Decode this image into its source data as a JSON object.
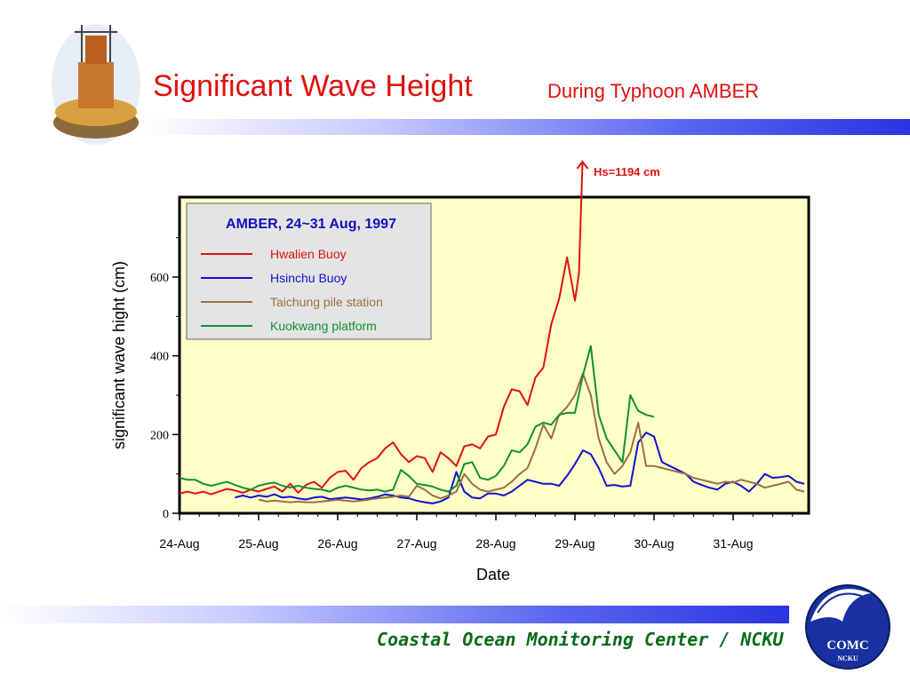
{
  "title": "Significant Wave Height",
  "subtitle": "During Typhoon AMBER",
  "footer": "Coastal Ocean Monitoring Center / NCKU",
  "logo": {
    "name": "COMC",
    "sub": "NCKU"
  },
  "colors": {
    "title": "#e01010",
    "plot_bg": "#ffffc8",
    "legend_bg": "#e4e4e4",
    "footer": "#0a6b1a",
    "bar": "#2a34e0"
  },
  "chart_data": {
    "type": "line",
    "title": "",
    "xlabel": "Date",
    "ylabel": "significant wave hight (cm)",
    "x_ticks": [
      "24-Aug",
      "25-Aug",
      "26-Aug",
      "27-Aug",
      "28-Aug",
      "29-Aug",
      "30-Aug",
      "31-Aug"
    ],
    "y_ticks": [
      "0",
      "200",
      "400",
      "600"
    ],
    "xlim": [
      0,
      7.9
    ],
    "ylim": [
      0,
      800
    ],
    "grid": false,
    "legend": {
      "title": "AMBER, 24~31 Aug, 1997",
      "position": "top-left"
    },
    "annotation": "Hs=1194 cm",
    "series": [
      {
        "name": "Hwalien Buoy",
        "color": "#e01010",
        "x": [
          0,
          0.1,
          0.2,
          0.3,
          0.4,
          0.5,
          0.6,
          0.7,
          0.8,
          0.9,
          1.0,
          1.1,
          1.2,
          1.3,
          1.4,
          1.5,
          1.6,
          1.7,
          1.8,
          1.9,
          2.0,
          2.1,
          2.2,
          2.3,
          2.4,
          2.5,
          2.6,
          2.7,
          2.8,
          2.9,
          3.0,
          3.1,
          3.2,
          3.3,
          3.4,
          3.5,
          3.6,
          3.7,
          3.8,
          3.9,
          4.0,
          4.1,
          4.2,
          4.3,
          4.4,
          4.5,
          4.6,
          4.7,
          4.8,
          4.9,
          5.0,
          5.05
        ],
        "y": [
          50,
          55,
          50,
          55,
          48,
          55,
          62,
          58,
          52,
          60,
          55,
          62,
          68,
          55,
          75,
          52,
          72,
          80,
          65,
          90,
          105,
          108,
          85,
          115,
          130,
          140,
          165,
          180,
          150,
          130,
          145,
          140,
          105,
          155,
          140,
          120,
          170,
          175,
          165,
          195,
          200,
          270,
          315,
          310,
          275,
          345,
          370,
          480,
          545,
          650,
          540,
          610
        ],
        "y_final": 1194
      },
      {
        "name": "Hsinchu Buoy",
        "color": "#1010d0",
        "x": [
          0.7,
          0.8,
          0.9,
          1.0,
          1.1,
          1.2,
          1.3,
          1.4,
          1.5,
          1.6,
          1.7,
          1.8,
          1.9,
          2.0,
          2.1,
          2.2,
          2.3,
          2.4,
          2.5,
          2.6,
          2.7,
          2.8,
          2.9,
          3.0,
          3.1,
          3.2,
          3.3,
          3.4,
          3.5,
          3.6,
          3.7,
          3.8,
          3.9,
          4.0,
          4.1,
          4.2,
          4.3,
          4.4,
          4.5,
          4.6,
          4.7,
          4.8,
          4.9,
          5.0,
          5.1,
          5.2,
          5.3,
          5.4,
          5.5,
          5.6,
          5.7,
          5.8,
          5.9,
          6.0,
          6.1,
          6.2,
          6.3,
          6.4,
          6.5,
          6.6,
          6.7,
          6.8,
          6.9,
          7.0,
          7.1,
          7.2,
          7.3,
          7.4,
          7.5,
          7.6,
          7.7,
          7.8,
          7.9
        ],
        "y": [
          40,
          45,
          40,
          45,
          42,
          48,
          40,
          42,
          38,
          35,
          40,
          42,
          36,
          38,
          40,
          38,
          35,
          38,
          42,
          48,
          45,
          40,
          38,
          32,
          28,
          25,
          30,
          40,
          105,
          55,
          40,
          38,
          50,
          50,
          45,
          55,
          70,
          85,
          80,
          75,
          75,
          70,
          95,
          125,
          160,
          150,
          115,
          70,
          72,
          68,
          70,
          180,
          205,
          195,
          130,
          120,
          110,
          100,
          80,
          72,
          65,
          60,
          75,
          80,
          70,
          55,
          75,
          100,
          90,
          92,
          95,
          80,
          75
        ]
      },
      {
        "name": "Taichung pile station",
        "color": "#9a7040",
        "x": [
          1.0,
          1.1,
          1.2,
          1.3,
          1.4,
          1.5,
          1.6,
          1.7,
          1.8,
          1.9,
          2.0,
          2.1,
          2.2,
          2.3,
          2.4,
          2.5,
          2.6,
          2.7,
          2.8,
          2.9,
          3.0,
          3.1,
          3.2,
          3.3,
          3.4,
          3.5,
          3.6,
          3.7,
          3.8,
          3.9,
          4.0,
          4.1,
          4.2,
          4.3,
          4.4,
          4.5,
          4.6,
          4.7,
          4.8,
          4.9,
          5.0,
          5.1,
          5.2,
          5.3,
          5.4,
          5.5,
          5.6,
          5.7,
          5.8,
          5.9,
          6.0,
          6.1,
          6.2,
          6.3,
          6.4,
          6.5,
          6.6,
          6.7,
          6.8,
          6.9,
          7.0,
          7.1,
          7.2,
          7.3,
          7.4,
          7.5,
          7.6,
          7.7,
          7.8,
          7.9
        ],
        "y": [
          35,
          30,
          32,
          30,
          28,
          30,
          28,
          28,
          30,
          32,
          34,
          32,
          30,
          32,
          35,
          38,
          40,
          42,
          45,
          42,
          70,
          60,
          45,
          38,
          45,
          55,
          100,
          75,
          60,
          55,
          60,
          65,
          80,
          100,
          115,
          165,
          225,
          190,
          250,
          270,
          300,
          355,
          300,
          190,
          130,
          100,
          120,
          155,
          230,
          120,
          120,
          115,
          110,
          105,
          100,
          90,
          85,
          80,
          75,
          80,
          78,
          85,
          80,
          75,
          65,
          70,
          75,
          80,
          60,
          55
        ]
      },
      {
        "name": "Kuokwang platform",
        "color": "#109030",
        "x": [
          0,
          0.1,
          0.2,
          0.3,
          0.4,
          0.5,
          0.6,
          0.7,
          0.8,
          0.9,
          1.0,
          1.1,
          1.2,
          1.3,
          1.4,
          1.5,
          1.6,
          1.7,
          1.8,
          1.9,
          2.0,
          2.1,
          2.2,
          2.3,
          2.4,
          2.5,
          2.6,
          2.7,
          2.8,
          2.9,
          3.0,
          3.1,
          3.2,
          3.3,
          3.4,
          3.5,
          3.6,
          3.7,
          3.8,
          3.9,
          4.0,
          4.1,
          4.2,
          4.3,
          4.4,
          4.5,
          4.6,
          4.7,
          4.8,
          4.9,
          5.0,
          5.1,
          5.2,
          5.3,
          5.4,
          5.5,
          5.6,
          5.7,
          5.8,
          5.9,
          6.0
        ],
        "y": [
          90,
          85,
          85,
          75,
          70,
          75,
          80,
          72,
          65,
          60,
          70,
          75,
          78,
          70,
          65,
          70,
          65,
          62,
          60,
          55,
          65,
          70,
          65,
          60,
          58,
          60,
          55,
          60,
          110,
          95,
          75,
          72,
          68,
          60,
          55,
          70,
          125,
          130,
          90,
          85,
          95,
          120,
          160,
          155,
          175,
          220,
          230,
          225,
          250,
          255,
          255,
          350,
          425,
          250,
          190,
          160,
          130,
          300,
          260,
          250,
          245
        ]
      }
    ]
  }
}
